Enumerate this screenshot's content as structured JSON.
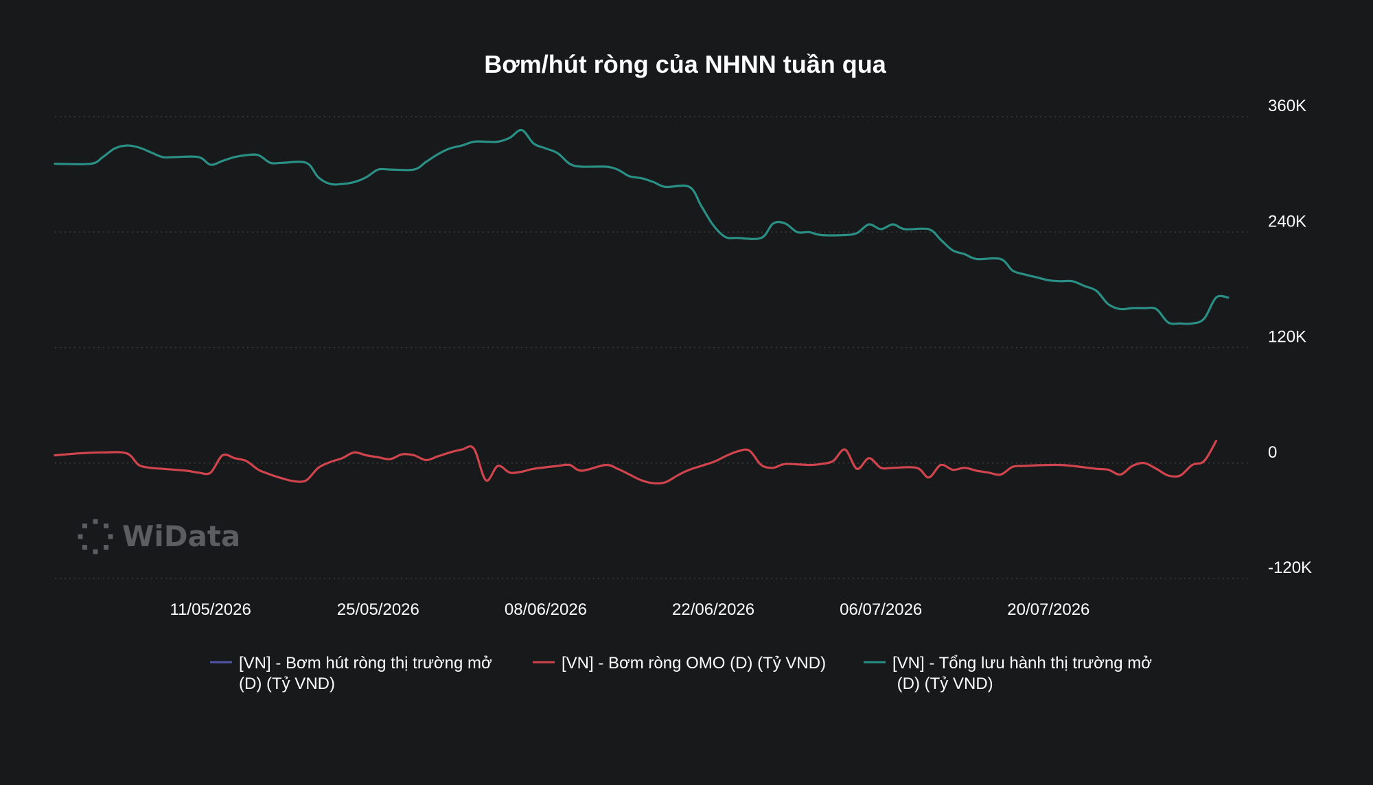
{
  "watermark": {
    "text": "WiData"
  },
  "chart_data": {
    "type": "line",
    "title": "Bơm/hút ròng của NHNN tuần qua",
    "xlabel": "",
    "ylabel": "",
    "ylim": [
      -120000,
      360000
    ],
    "y_ticks": [
      {
        "value": 360000,
        "label": "360K"
      },
      {
        "value": 240000,
        "label": "240K"
      },
      {
        "value": 120000,
        "label": "120K"
      },
      {
        "value": 0,
        "label": "0"
      },
      {
        "value": -120000,
        "label": "-120K"
      }
    ],
    "x_range": [
      "2026-04-28",
      "2026-08-03"
    ],
    "x_ticks": [
      {
        "date": "2026-05-11",
        "label": "11/05/2026"
      },
      {
        "date": "2026-05-25",
        "label": "25/05/2026"
      },
      {
        "date": "2026-06-08",
        "label": "08/06/2026"
      },
      {
        "date": "2026-06-22",
        "label": "22/06/2026"
      },
      {
        "date": "2026-07-06",
        "label": "06/07/2026"
      },
      {
        "date": "2026-07-20",
        "label": "20/07/2026"
      }
    ],
    "grid": true,
    "legend_position": "bottom",
    "series": [
      {
        "name": "[VN] - Bơm hút ròng thị trường mở (D) (Tỷ VND)",
        "legend_lines": [
          "[VN] - Bơm hút ròng thị trường mở",
          "(D) (Tỷ VND)"
        ],
        "color": "#4f55a8",
        "points": []
      },
      {
        "name": "[VN] - Bơm ròng OMO (D) (Tỷ VND)",
        "legend_lines": [
          "[VN] - Bơm ròng OMO (D) (Tỷ VND)"
        ],
        "color": "#d0454d",
        "points": [
          [
            "2026-04-28",
            8000
          ],
          [
            "2026-04-30",
            10000
          ],
          [
            "2026-05-02",
            11000
          ],
          [
            "2026-05-04",
            10000
          ],
          [
            "2026-05-05",
            -2000
          ],
          [
            "2026-05-06",
            -5000
          ],
          [
            "2026-05-07",
            -6000
          ],
          [
            "2026-05-09",
            -8000
          ],
          [
            "2026-05-10",
            -10000
          ],
          [
            "2026-05-11",
            -10000
          ],
          [
            "2026-05-12",
            8000
          ],
          [
            "2026-05-13",
            5000
          ],
          [
            "2026-05-14",
            2000
          ],
          [
            "2026-05-15",
            -7000
          ],
          [
            "2026-05-16",
            -12000
          ],
          [
            "2026-05-17",
            -16000
          ],
          [
            "2026-05-18",
            -19000
          ],
          [
            "2026-05-19",
            -18000
          ],
          [
            "2026-05-20",
            -5000
          ],
          [
            "2026-05-21",
            1000
          ],
          [
            "2026-05-22",
            5000
          ],
          [
            "2026-05-23",
            11000
          ],
          [
            "2026-05-24",
            8000
          ],
          [
            "2026-05-25",
            6000
          ],
          [
            "2026-05-26",
            4000
          ],
          [
            "2026-05-27",
            9000
          ],
          [
            "2026-05-28",
            8000
          ],
          [
            "2026-05-29",
            3000
          ],
          [
            "2026-05-30",
            7000
          ],
          [
            "2026-05-31",
            11000
          ],
          [
            "2026-06-01",
            14000
          ],
          [
            "2026-06-02",
            15000
          ],
          [
            "2026-06-03",
            -18000
          ],
          [
            "2026-06-04",
            -3000
          ],
          [
            "2026-06-05",
            -10000
          ],
          [
            "2026-06-06",
            -9000
          ],
          [
            "2026-06-07",
            -6000
          ],
          [
            "2026-06-09",
            -3000
          ],
          [
            "2026-06-10",
            -2000
          ],
          [
            "2026-06-11",
            -8000
          ],
          [
            "2026-06-13",
            -2000
          ],
          [
            "2026-06-14",
            -6000
          ],
          [
            "2026-06-15",
            -12000
          ],
          [
            "2026-06-16",
            -18000
          ],
          [
            "2026-06-17",
            -21000
          ],
          [
            "2026-06-18",
            -20000
          ],
          [
            "2026-06-19",
            -13000
          ],
          [
            "2026-06-20",
            -7000
          ],
          [
            "2026-06-22",
            1000
          ],
          [
            "2026-06-23",
            7000
          ],
          [
            "2026-06-24",
            12000
          ],
          [
            "2026-06-25",
            13000
          ],
          [
            "2026-06-26",
            -2000
          ],
          [
            "2026-06-27",
            -5000
          ],
          [
            "2026-06-28",
            -1000
          ],
          [
            "2026-06-30",
            -2000
          ],
          [
            "2026-07-01",
            -1000
          ],
          [
            "2026-07-02",
            2000
          ],
          [
            "2026-07-03",
            14000
          ],
          [
            "2026-07-04",
            -6000
          ],
          [
            "2026-07-05",
            5000
          ],
          [
            "2026-07-06",
            -5000
          ],
          [
            "2026-07-07",
            -5000
          ],
          [
            "2026-07-09",
            -5000
          ],
          [
            "2026-07-10",
            -15000
          ],
          [
            "2026-07-11",
            -2000
          ],
          [
            "2026-07-12",
            -7000
          ],
          [
            "2026-07-13",
            -5000
          ],
          [
            "2026-07-14",
            -8000
          ],
          [
            "2026-07-15",
            -10000
          ],
          [
            "2026-07-16",
            -12000
          ],
          [
            "2026-07-17",
            -4000
          ],
          [
            "2026-07-18",
            -3000
          ],
          [
            "2026-07-20",
            -2000
          ],
          [
            "2026-07-21",
            -2000
          ],
          [
            "2026-07-22",
            -3000
          ],
          [
            "2026-07-24",
            -6000
          ],
          [
            "2026-07-25",
            -7000
          ],
          [
            "2026-07-26",
            -12000
          ],
          [
            "2026-07-27",
            -3000
          ],
          [
            "2026-07-28",
            0
          ],
          [
            "2026-07-29",
            -6000
          ],
          [
            "2026-07-30",
            -13000
          ],
          [
            "2026-07-31",
            -13000
          ],
          [
            "2026-08-01",
            -2000
          ],
          [
            "2026-08-02",
            2000
          ],
          [
            "2026-08-03",
            23000
          ]
        ]
      },
      {
        "name": "[VN] - Tổng lưu hành thị trường mở (D) (Tỷ VND)",
        "legend_lines": [
          "[VN] - Tổng lưu hành thị trường mở",
          " (D) (Tỷ VND)"
        ],
        "color": "#2a8f84",
        "points": [
          [
            "2026-04-28",
            311000
          ],
          [
            "2026-05-01",
            311000
          ],
          [
            "2026-05-02",
            318000
          ],
          [
            "2026-05-03",
            327000
          ],
          [
            "2026-05-04",
            330000
          ],
          [
            "2026-05-05",
            328000
          ],
          [
            "2026-05-06",
            323000
          ],
          [
            "2026-05-07",
            318000
          ],
          [
            "2026-05-08",
            318000
          ],
          [
            "2026-05-10",
            318000
          ],
          [
            "2026-05-11",
            310000
          ],
          [
            "2026-05-12",
            314000
          ],
          [
            "2026-05-13",
            318000
          ],
          [
            "2026-05-14",
            320000
          ],
          [
            "2026-05-15",
            320000
          ],
          [
            "2026-05-16",
            312000
          ],
          [
            "2026-05-17",
            312000
          ],
          [
            "2026-05-19",
            312000
          ],
          [
            "2026-05-20",
            297000
          ],
          [
            "2026-05-21",
            290000
          ],
          [
            "2026-05-22",
            290000
          ],
          [
            "2026-05-23",
            292000
          ],
          [
            "2026-05-24",
            297000
          ],
          [
            "2026-05-25",
            305000
          ],
          [
            "2026-05-26",
            305000
          ],
          [
            "2026-05-28",
            305000
          ],
          [
            "2026-05-29",
            313000
          ],
          [
            "2026-05-30",
            321000
          ],
          [
            "2026-05-31",
            327000
          ],
          [
            "2026-06-01",
            330000
          ],
          [
            "2026-06-02",
            334000
          ],
          [
            "2026-06-03",
            334000
          ],
          [
            "2026-06-04",
            334000
          ],
          [
            "2026-06-05",
            338000
          ],
          [
            "2026-06-06",
            346000
          ],
          [
            "2026-06-07",
            332000
          ],
          [
            "2026-06-08",
            327000
          ],
          [
            "2026-06-09",
            322000
          ],
          [
            "2026-06-10",
            311000
          ],
          [
            "2026-06-11",
            308000
          ],
          [
            "2026-06-13",
            308000
          ],
          [
            "2026-06-14",
            305000
          ],
          [
            "2026-06-15",
            298000
          ],
          [
            "2026-06-16",
            296000
          ],
          [
            "2026-06-17",
            292000
          ],
          [
            "2026-06-18",
            287000
          ],
          [
            "2026-06-20",
            287000
          ],
          [
            "2026-06-21",
            267000
          ],
          [
            "2026-06-22",
            247000
          ],
          [
            "2026-06-23",
            235000
          ],
          [
            "2026-06-24",
            234000
          ],
          [
            "2026-06-26",
            234000
          ],
          [
            "2026-06-27",
            249000
          ],
          [
            "2026-06-28",
            249000
          ],
          [
            "2026-06-29",
            240000
          ],
          [
            "2026-06-30",
            240000
          ],
          [
            "2026-07-01",
            237000
          ],
          [
            "2026-07-03",
            237000
          ],
          [
            "2026-07-04",
            239000
          ],
          [
            "2026-07-05",
            248000
          ],
          [
            "2026-07-06",
            243000
          ],
          [
            "2026-07-07",
            248000
          ],
          [
            "2026-07-08",
            243000
          ],
          [
            "2026-07-10",
            243000
          ],
          [
            "2026-07-11",
            232000
          ],
          [
            "2026-07-12",
            221000
          ],
          [
            "2026-07-13",
            217000
          ],
          [
            "2026-07-14",
            212000
          ],
          [
            "2026-07-16",
            212000
          ],
          [
            "2026-07-17",
            200000
          ],
          [
            "2026-07-18",
            196000
          ],
          [
            "2026-07-19",
            193000
          ],
          [
            "2026-07-20",
            190000
          ],
          [
            "2026-07-21",
            189000
          ],
          [
            "2026-07-22",
            189000
          ],
          [
            "2026-07-23",
            184000
          ],
          [
            "2026-07-24",
            179000
          ],
          [
            "2026-07-25",
            165000
          ],
          [
            "2026-07-26",
            160000
          ],
          [
            "2026-07-27",
            161000
          ],
          [
            "2026-07-28",
            161000
          ],
          [
            "2026-07-29",
            160000
          ],
          [
            "2026-07-30",
            146000
          ],
          [
            "2026-07-31",
            145000
          ],
          [
            "2026-08-01",
            145000
          ],
          [
            "2026-08-02",
            150000
          ],
          [
            "2026-08-03",
            172000
          ],
          [
            "2026-08-04",
            172000
          ]
        ]
      }
    ]
  }
}
